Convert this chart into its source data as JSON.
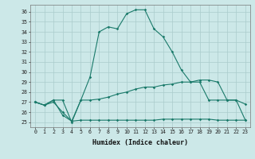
{
  "title": "",
  "xlabel": "Humidex (Indice chaleur)",
  "background_color": "#cce8e8",
  "grid_color": "#aacccc",
  "line_color": "#1a7a6a",
  "xlim": [
    -0.5,
    23.5
  ],
  "ylim": [
    24.5,
    36.7
  ],
  "yticks": [
    25,
    26,
    27,
    28,
    29,
    30,
    31,
    32,
    33,
    34,
    35,
    36
  ],
  "xticks": [
    0,
    1,
    2,
    3,
    4,
    5,
    6,
    7,
    8,
    9,
    10,
    11,
    12,
    13,
    14,
    15,
    16,
    17,
    18,
    19,
    20,
    21,
    22,
    23
  ],
  "line1_x": [
    0,
    1,
    2,
    3,
    4,
    5,
    6,
    7,
    8,
    9,
    10,
    11,
    12,
    13,
    14,
    15,
    16,
    17,
    18,
    19,
    20,
    21,
    22,
    23
  ],
  "line1_y": [
    27.0,
    26.7,
    27.2,
    27.2,
    25.0,
    27.2,
    29.5,
    34.0,
    34.5,
    34.3,
    35.8,
    36.2,
    36.2,
    34.3,
    33.5,
    32.0,
    30.2,
    29.0,
    29.2,
    29.2,
    29.0,
    27.2,
    27.2,
    26.8
  ],
  "line2_x": [
    0,
    1,
    2,
    3,
    4,
    5,
    6,
    7,
    8,
    9,
    10,
    11,
    12,
    13,
    14,
    15,
    16,
    17,
    18,
    19,
    20,
    21,
    22,
    23
  ],
  "line2_y": [
    27.0,
    26.7,
    27.2,
    25.7,
    25.1,
    27.2,
    27.2,
    27.3,
    27.5,
    27.8,
    28.0,
    28.3,
    28.5,
    28.5,
    28.7,
    28.8,
    29.0,
    29.0,
    29.0,
    27.2,
    27.2,
    27.2,
    27.2,
    25.2
  ],
  "line3_x": [
    0,
    1,
    2,
    3,
    4,
    5,
    6,
    7,
    8,
    9,
    10,
    11,
    12,
    13,
    14,
    15,
    16,
    17,
    18,
    19,
    20,
    21,
    22,
    23
  ],
  "line3_y": [
    27.0,
    26.7,
    27.0,
    26.0,
    25.1,
    25.2,
    25.2,
    25.2,
    25.2,
    25.2,
    25.2,
    25.2,
    25.2,
    25.2,
    25.3,
    25.3,
    25.3,
    25.3,
    25.3,
    25.3,
    25.2,
    25.2,
    25.2,
    25.2
  ],
  "tick_fontsize": 4.8,
  "xlabel_fontsize": 6.0
}
